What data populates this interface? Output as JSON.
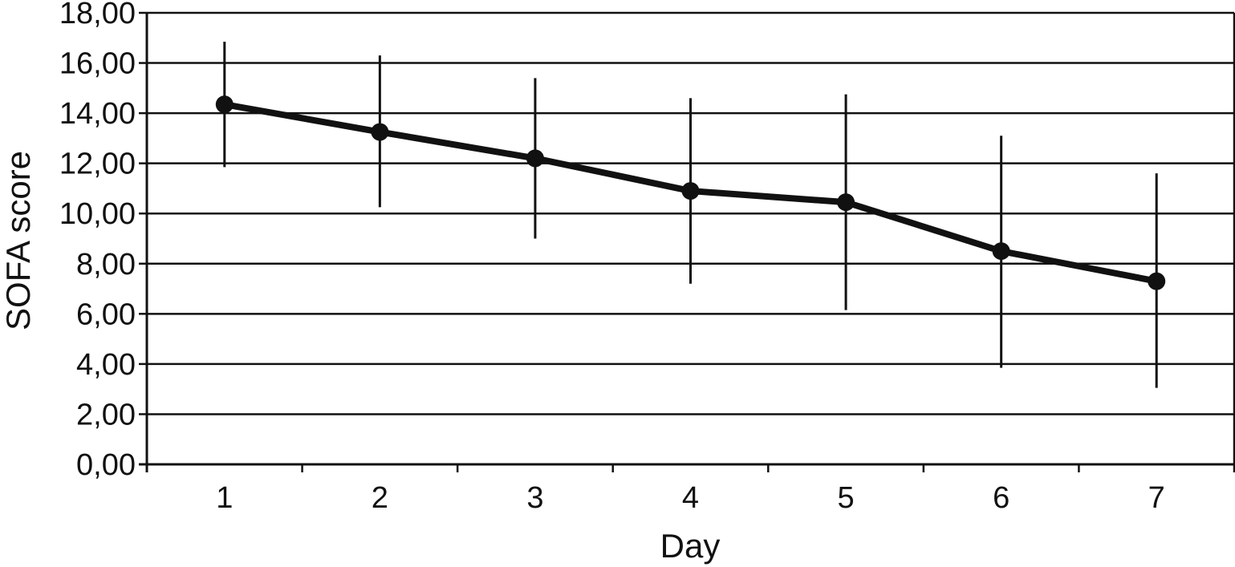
{
  "colors": {
    "background": "#ffffff",
    "axis": "#111111",
    "grid": "#111111",
    "series": "#111111"
  },
  "chart_data": {
    "type": "line",
    "title": "",
    "xlabel": "Day",
    "ylabel": "SOFA score",
    "x": [
      1,
      2,
      3,
      4,
      5,
      6,
      7
    ],
    "ylim": [
      0,
      18
    ],
    "yticks": [
      0,
      2,
      4,
      6,
      8,
      10,
      12,
      14,
      16,
      18
    ],
    "ytick_labels": [
      "0,00",
      "2,00",
      "4,00",
      "6,00",
      "8,00",
      "10,00",
      "12,00",
      "14,00",
      "16,00",
      "18,00"
    ],
    "xtick_labels": [
      "1",
      "2",
      "3",
      "4",
      "5",
      "6",
      "7"
    ],
    "grid": "horizontal",
    "series": [
      {
        "values": [
          14.35,
          13.25,
          12.2,
          10.9,
          10.45,
          8.5,
          7.3
        ],
        "error_low": [
          11.85,
          10.25,
          9.0,
          7.2,
          6.15,
          3.85,
          3.05
        ],
        "error_high": [
          16.85,
          16.3,
          15.4,
          14.6,
          14.75,
          13.1,
          11.6
        ]
      }
    ]
  }
}
